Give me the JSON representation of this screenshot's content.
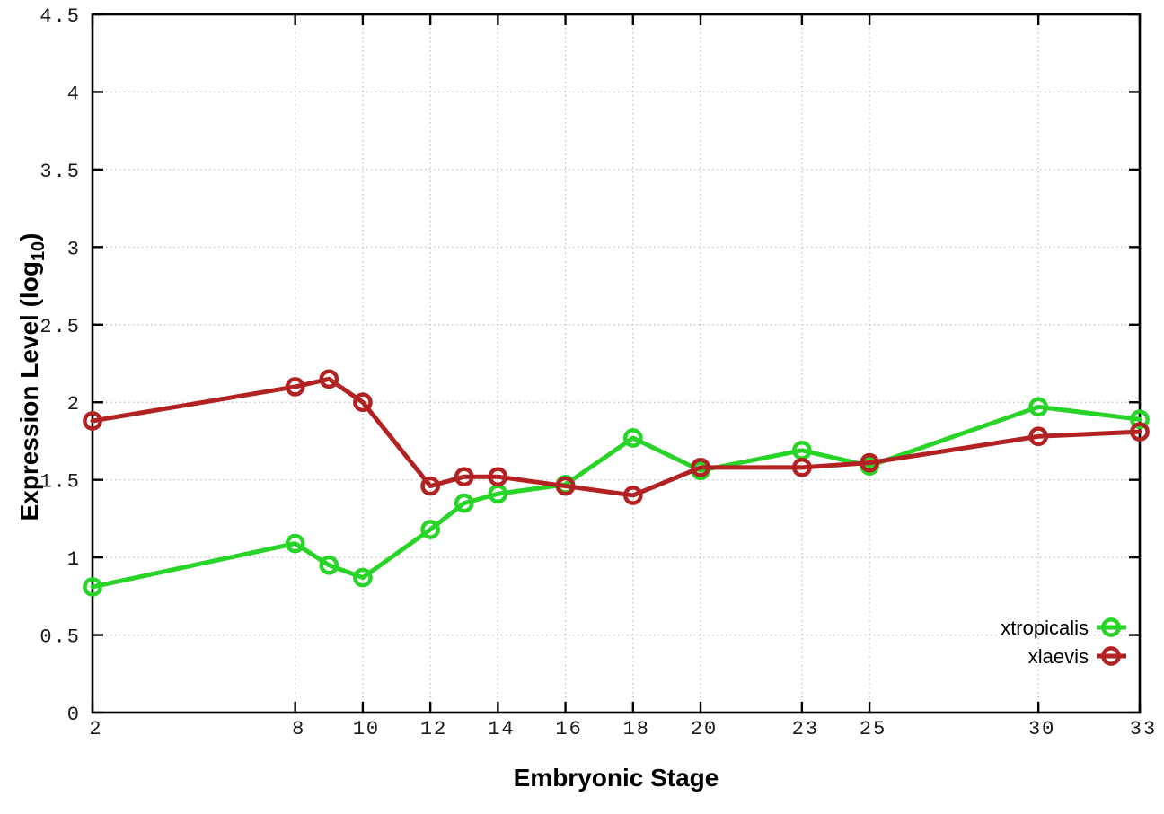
{
  "chart_data": {
    "type": "line",
    "title": "",
    "xlabel": "Embryonic Stage",
    "ylabel": "Expression Level (log10)",
    "ylabel_parts": {
      "pre": "Expression Level (log",
      "sub": "10",
      "post": ")"
    },
    "xlim": [
      2,
      33
    ],
    "ylim": [
      0,
      4.5
    ],
    "xticks": [
      2,
      8,
      10,
      12,
      14,
      16,
      18,
      20,
      23,
      25,
      30,
      33
    ],
    "xtick_labels": [
      "2",
      "8",
      "10",
      "12",
      "14",
      "16",
      "18",
      "20",
      "23",
      "25",
      "30",
      "33"
    ],
    "yticks": [
      0,
      0.5,
      1,
      1.5,
      2,
      2.5,
      3,
      3.5,
      4,
      4.5
    ],
    "ytick_labels": [
      "0",
      "0.5",
      "1",
      "1.5",
      "2",
      "2.5",
      "3",
      "3.5",
      "4",
      "4.5"
    ],
    "grid": true,
    "legend_position": "inside-bottom-right",
    "x": [
      2,
      8,
      9,
      10,
      12,
      13,
      14,
      16,
      18,
      20,
      23,
      25,
      30,
      33
    ],
    "series": [
      {
        "name": "xtropicalis",
        "color": "#28d428",
        "marker": "open-circle",
        "values": [
          0.81,
          1.09,
          0.95,
          0.87,
          1.18,
          1.35,
          1.41,
          1.47,
          1.77,
          1.56,
          1.69,
          1.59,
          1.97,
          1.89
        ]
      },
      {
        "name": "xlaevis",
        "color": "#b22222",
        "marker": "open-circle",
        "values": [
          1.88,
          2.1,
          2.15,
          2.0,
          1.46,
          1.52,
          1.52,
          1.46,
          1.4,
          1.58,
          1.58,
          1.61,
          1.78,
          1.81
        ]
      }
    ],
    "axis_color": "#000000",
    "grid_color": "#bcbcbc",
    "background_color": "#ffffff"
  }
}
